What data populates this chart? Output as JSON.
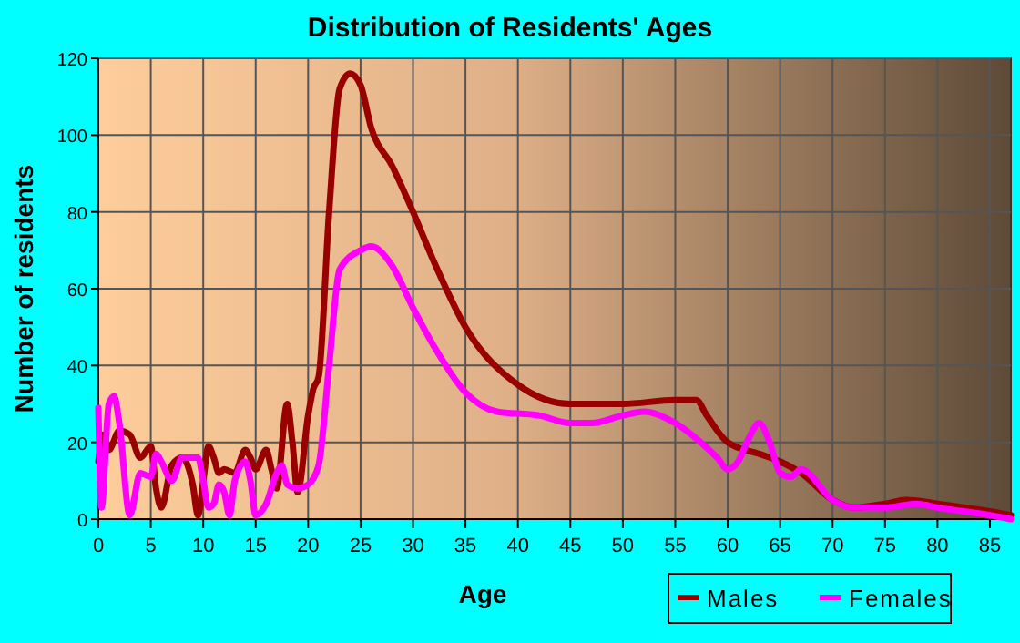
{
  "chart_data": {
    "type": "line",
    "title": "Distribution of Residents' Ages",
    "xlabel": "Age",
    "ylabel": "Number of residents",
    "xlim": [
      0,
      87
    ],
    "xticks": [
      0,
      5,
      10,
      15,
      20,
      25,
      30,
      35,
      40,
      45,
      50,
      55,
      60,
      65,
      70,
      75,
      80,
      85
    ],
    "ylim": [
      0,
      120
    ],
    "yticks": [
      0,
      20,
      40,
      60,
      80,
      100,
      120
    ],
    "grid": true,
    "legend": "bottom right",
    "line_style": "solid",
    "marker": "none",
    "series": [
      {
        "name": "Males",
        "color": "#990000",
        "x": [
          0,
          0.5,
          1,
          2,
          3,
          4,
          5,
          5.5,
          6,
          7,
          8,
          9,
          9.5,
          10,
          10.5,
          11,
          11.5,
          12,
          13,
          14,
          14.5,
          15,
          16,
          16.5,
          17,
          18,
          18.5,
          19,
          20,
          20.5,
          21,
          22,
          23,
          24,
          25,
          26,
          28,
          30,
          32,
          35,
          40,
          45,
          50,
          55,
          57,
          58,
          60,
          63,
          65,
          67,
          70,
          72,
          75,
          77,
          80,
          85,
          87
        ],
        "values": [
          15,
          22,
          18,
          23,
          22,
          16,
          19,
          8,
          3,
          14,
          16,
          9,
          1,
          10,
          19,
          16,
          12,
          13,
          12,
          18,
          16,
          13,
          18,
          13,
          8,
          30,
          20,
          7,
          27,
          34,
          37,
          80,
          112,
          116,
          113,
          102,
          92,
          80,
          67,
          50,
          35,
          30,
          30,
          31,
          31,
          27,
          20,
          17,
          15,
          12,
          5,
          3,
          4,
          5,
          4,
          2,
          1
        ]
      },
      {
        "name": "Females",
        "color": "#ff00ff",
        "x": [
          0,
          0.3,
          1,
          1.5,
          2,
          3,
          4,
          5,
          5.5,
          6,
          7,
          8,
          9,
          9.5,
          10,
          10.5,
          11,
          11.5,
          12,
          12.5,
          13,
          14,
          14.5,
          15,
          16,
          17,
          17.5,
          18,
          19,
          20,
          21,
          22,
          23,
          25,
          26,
          28,
          30,
          32,
          35,
          38,
          42,
          45,
          47,
          50,
          52,
          55,
          57,
          59,
          60,
          61,
          62,
          63,
          64,
          65,
          66,
          67,
          70,
          72,
          75,
          78,
          80,
          85,
          87
        ],
        "values": [
          29,
          3,
          30,
          32,
          25,
          1,
          12,
          11,
          17,
          15,
          10,
          16,
          16,
          16,
          10,
          3,
          4,
          9,
          7,
          1,
          10,
          15,
          10,
          1,
          4,
          12,
          14,
          9,
          8,
          9,
          14,
          40,
          65,
          70,
          71,
          66,
          55,
          45,
          33,
          28,
          27,
          25,
          25,
          27,
          28,
          25,
          21,
          16,
          13,
          15,
          21,
          25,
          20,
          12,
          11,
          13,
          5,
          3,
          3,
          4,
          3,
          1,
          0
        ]
      }
    ]
  }
}
